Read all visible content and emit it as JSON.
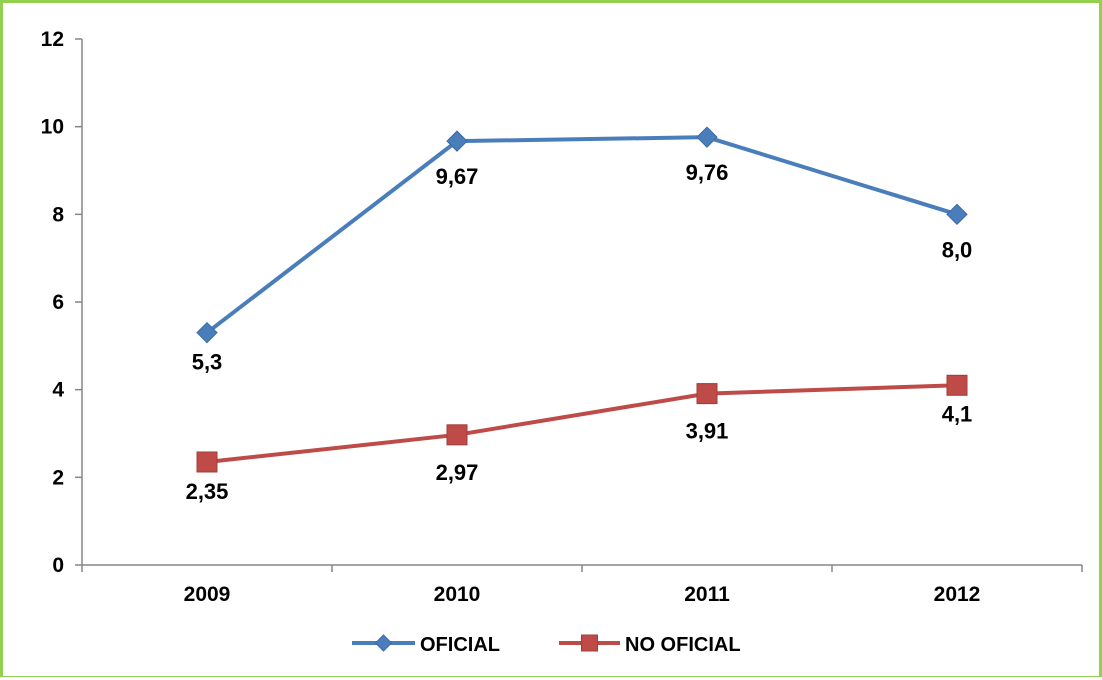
{
  "chart_data": {
    "type": "line",
    "categories": [
      "2009",
      "2010",
      "2011",
      "2012"
    ],
    "ylim": [
      0,
      12
    ],
    "yticks": [
      0,
      2,
      4,
      6,
      8,
      10,
      12
    ],
    "ytick_labels": [
      "0",
      "2",
      "4",
      "6",
      "8",
      "10",
      "12"
    ],
    "grid": false,
    "legend_position": "bottom",
    "series": [
      {
        "name": "OFICIAL",
        "color": "#4a7ebb",
        "marker": "diamond",
        "values": [
          5.3,
          9.67,
          9.76,
          8.0
        ],
        "labels": [
          "5,3",
          "9,67",
          "9,76",
          "8,0"
        ]
      },
      {
        "name": "NO OFICIAL",
        "color": "#be4b48",
        "marker": "square",
        "values": [
          2.35,
          2.97,
          3.91,
          4.1
        ],
        "labels": [
          "2,35",
          "2,97",
          "3,91",
          "4,1"
        ]
      }
    ]
  }
}
